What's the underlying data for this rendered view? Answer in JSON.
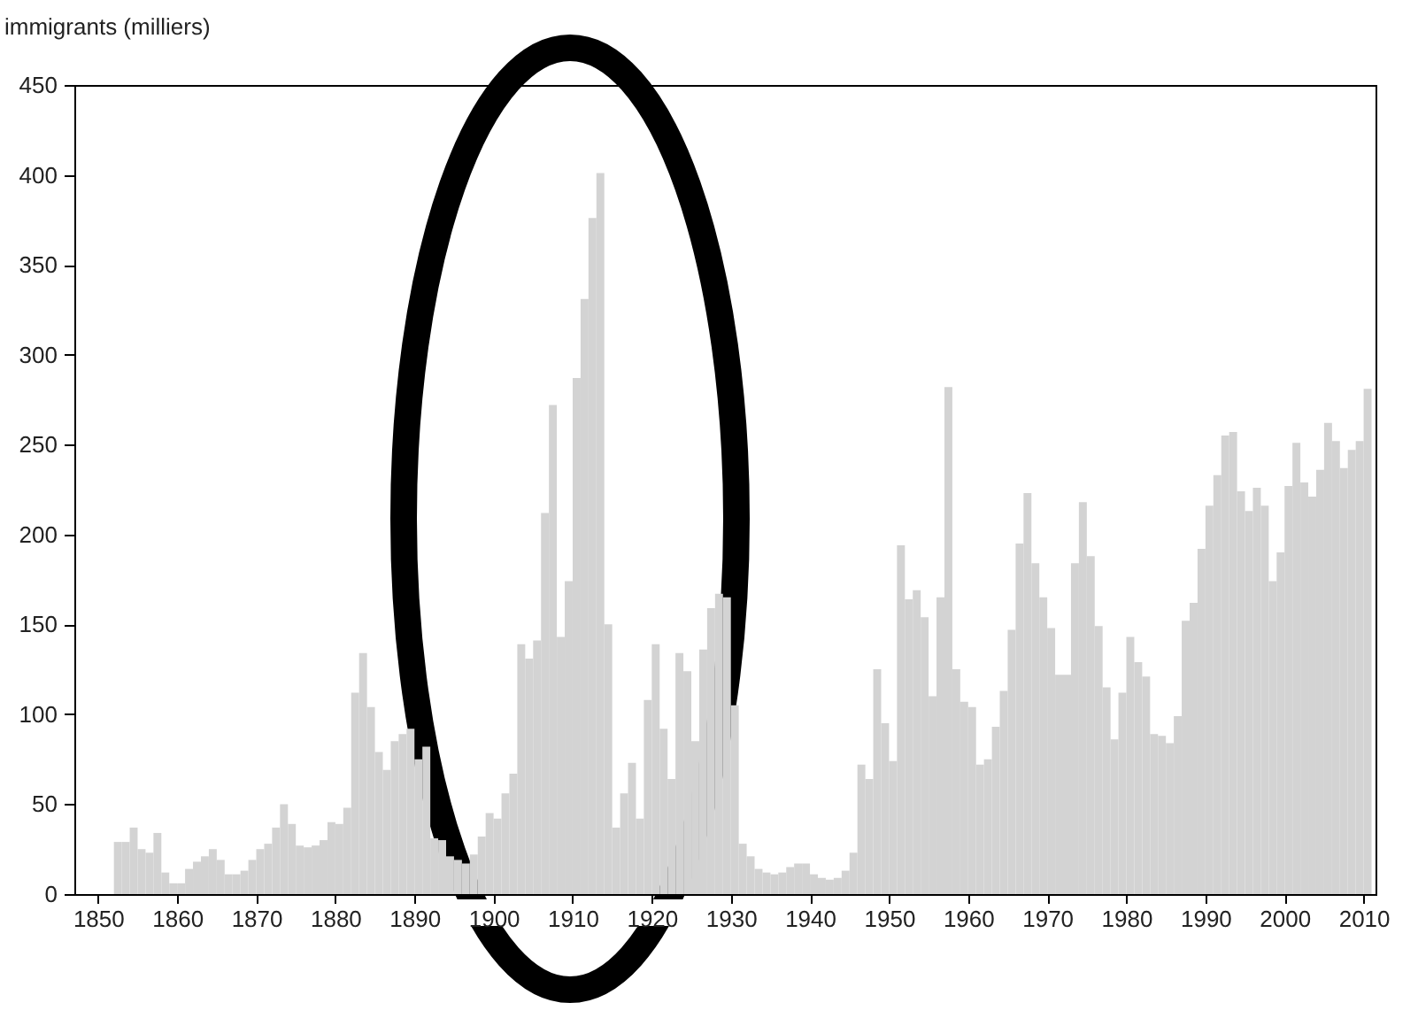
{
  "chart_data": {
    "type": "histogram",
    "ylabel": "immigrants (milliers)",
    "color": "#d3d3d3",
    "bins": [
      1852,
      1853,
      1854,
      1855,
      1856,
      1857,
      1858,
      1859,
      1860,
      1861,
      1862,
      1863,
      1864,
      1865,
      1866,
      1867,
      1868,
      1869,
      1870,
      1871,
      1872,
      1873,
      1874,
      1875,
      1876,
      1877,
      1878,
      1879,
      1880,
      1881,
      1882,
      1883,
      1884,
      1885,
      1886,
      1887,
      1888,
      1889,
      1890,
      1891,
      1892,
      1893,
      1894,
      1895,
      1896,
      1897,
      1898,
      1899,
      1900,
      1901,
      1902,
      1903,
      1904,
      1905,
      1906,
      1907,
      1908,
      1909,
      1910,
      1911,
      1912,
      1913,
      1914,
      1915,
      1916,
      1917,
      1918,
      1919,
      1920,
      1921,
      1922,
      1923,
      1924,
      1925,
      1926,
      1927,
      1928,
      1929,
      1930,
      1931,
      1932,
      1933,
      1934,
      1935,
      1936,
      1937,
      1938,
      1939,
      1940,
      1941,
      1942,
      1943,
      1944,
      1945,
      1946,
      1947,
      1948,
      1949,
      1950,
      1951,
      1952,
      1953,
      1954,
      1955,
      1956,
      1957,
      1958,
      1959,
      1960,
      1961,
      1962,
      1963,
      1964,
      1965,
      1966,
      1967,
      1968,
      1969,
      1970,
      1971,
      1972,
      1973,
      1974,
      1975,
      1976,
      1977,
      1978,
      1979,
      1980,
      1981,
      1982,
      1983,
      1984,
      1985,
      1986,
      1987,
      1988,
      1989,
      1990,
      1991,
      1992,
      1993,
      1994,
      1995,
      1996,
      1997,
      1998,
      1999,
      2000,
      2001,
      2002,
      2003,
      2004,
      2005,
      2006,
      2007,
      2008,
      2009,
      2010,
      2011
    ],
    "values": [
      29,
      29,
      37,
      25,
      23,
      34,
      12,
      6,
      6,
      14,
      18,
      21,
      25,
      19,
      11,
      11,
      13,
      19,
      25,
      28,
      37,
      50,
      39,
      27,
      26,
      27,
      30,
      40,
      39,
      48,
      112,
      134,
      104,
      79,
      69,
      85,
      89,
      92,
      75,
      82,
      31,
      30,
      21,
      19,
      17,
      22,
      32,
      45,
      42,
      56,
      67,
      139,
      131,
      141,
      212,
      272,
      143,
      174,
      287,
      331,
      376,
      401,
      150,
      37,
      56,
      73,
      42,
      108,
      139,
      92,
      64,
      134,
      124,
      85,
      136,
      159,
      167,
      165,
      105,
      28,
      21,
      14,
      12,
      11,
      12,
      15,
      17,
      17,
      11,
      9,
      8,
      9,
      13,
      23,
      72,
      64,
      125,
      95,
      74,
      194,
      164,
      169,
      154,
      110,
      165,
      282,
      125,
      107,
      104,
      72,
      75,
      93,
      113,
      147,
      195,
      223,
      184,
      165,
      148,
      122,
      122,
      184,
      218,
      188,
      149,
      115,
      86,
      112,
      143,
      129,
      121,
      89,
      88,
      84,
      99,
      152,
      162,
      192,
      216,
      233,
      255,
      257,
      224,
      213,
      226,
      216,
      174,
      190,
      227,
      251,
      229,
      221,
      236,
      262,
      252,
      237,
      247,
      252,
      281
    ],
    "xlim": [
      1847,
      2011.5
    ],
    "ylim": [
      0,
      450
    ],
    "xticks": [
      1850,
      1860,
      1870,
      1880,
      1890,
      1900,
      1910,
      1920,
      1930,
      1940,
      1950,
      1960,
      1970,
      1980,
      1990,
      2000,
      2010
    ],
    "yticks": [
      0,
      50,
      100,
      150,
      200,
      250,
      300,
      350,
      400,
      450
    ]
  }
}
